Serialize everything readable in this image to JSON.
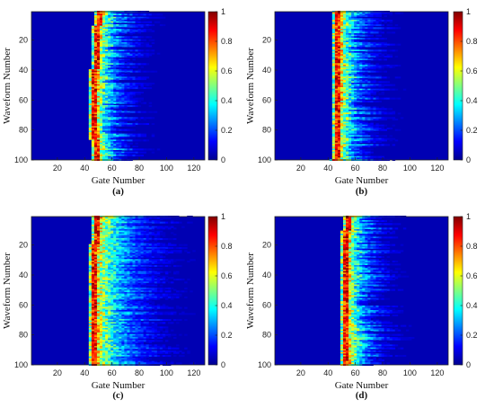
{
  "figure": {
    "panels": [
      {
        "label": "(a)"
      },
      {
        "label": "(b)"
      },
      {
        "label": "(c)"
      },
      {
        "label": "(d)"
      }
    ]
  },
  "chart_data": [
    {
      "type": "heatmap",
      "panel": "(a)",
      "xlabel": "Gate Number",
      "ylabel": "Waveform Number",
      "xlim": [
        1,
        128
      ],
      "ylim": [
        1,
        100
      ],
      "y_axis_direction": "top-to-bottom",
      "x_ticks": [
        20,
        40,
        60,
        80,
        100,
        120
      ],
      "y_ticks": [
        20,
        40,
        60,
        80,
        100
      ],
      "colorbar": {
        "min": 0,
        "max": 1,
        "ticks": [
          0,
          0.2,
          0.4,
          0.6,
          0.8,
          1
        ],
        "colormap": "jet"
      },
      "leading_edge_gate_by_waveform": [
        [
          1,
          48
        ],
        [
          20,
          46
        ],
        [
          40,
          45
        ],
        [
          60,
          44
        ],
        [
          80,
          44
        ],
        [
          100,
          47
        ]
      ],
      "background_value": 0.05,
      "peak_value": 1.0
    },
    {
      "type": "heatmap",
      "panel": "(b)",
      "xlabel": "Gate Number",
      "ylabel": "Waveform Number",
      "xlim": [
        1,
        128
      ],
      "ylim": [
        1,
        100
      ],
      "y_axis_direction": "top-to-bottom",
      "x_ticks": [
        20,
        40,
        60,
        80,
        100,
        120
      ],
      "y_ticks": [
        20,
        40,
        60,
        80,
        100
      ],
      "colorbar": {
        "min": 0,
        "max": 1,
        "ticks": [
          0,
          0.2,
          0.4,
          0.6,
          0.8,
          1
        ],
        "colormap": "jet"
      },
      "leading_edge_gate_by_waveform": [
        [
          1,
          44
        ],
        [
          20,
          44
        ],
        [
          40,
          45
        ],
        [
          60,
          45
        ],
        [
          80,
          44
        ],
        [
          100,
          43
        ]
      ],
      "background_value": 0.05,
      "peak_value": 1.0
    },
    {
      "type": "heatmap",
      "panel": "(c)",
      "xlabel": "Gate Number",
      "ylabel": "Waveform Number",
      "xlim": [
        1,
        128
      ],
      "ylim": [
        1,
        100
      ],
      "y_axis_direction": "top-to-bottom",
      "x_ticks": [
        20,
        40,
        60,
        80,
        100,
        120
      ],
      "y_ticks": [
        20,
        40,
        60,
        80,
        100
      ],
      "colorbar": {
        "min": 0,
        "max": 1,
        "ticks": [
          0,
          0.2,
          0.4,
          0.6,
          0.8,
          1
        ],
        "colormap": "jet"
      },
      "leading_edge_gate_by_waveform": [
        [
          1,
          47
        ],
        [
          20,
          45
        ],
        [
          40,
          44
        ],
        [
          60,
          44
        ],
        [
          80,
          44
        ],
        [
          100,
          45
        ]
      ],
      "background_value": 0.05,
      "peak_value": 1.0
    },
    {
      "type": "heatmap",
      "panel": "(d)",
      "xlabel": "Gate Number",
      "ylabel": "Waveform Number",
      "xlim": [
        1,
        128
      ],
      "ylim": [
        1,
        100
      ],
      "y_axis_direction": "top-to-bottom",
      "x_ticks": [
        20,
        40,
        60,
        80,
        100,
        120
      ],
      "y_ticks": [
        20,
        40,
        60,
        80,
        100
      ],
      "colorbar": {
        "min": 0,
        "max": 1,
        "ticks": [
          0,
          0.2,
          0.4,
          0.6,
          0.8,
          1
        ],
        "colormap": "jet"
      },
      "leading_edge_gate_by_waveform": [
        [
          1,
          52
        ],
        [
          20,
          50
        ],
        [
          40,
          50
        ],
        [
          60,
          50
        ],
        [
          80,
          51
        ],
        [
          100,
          51
        ]
      ],
      "background_value": 0.05,
      "peak_value": 1.0
    }
  ]
}
